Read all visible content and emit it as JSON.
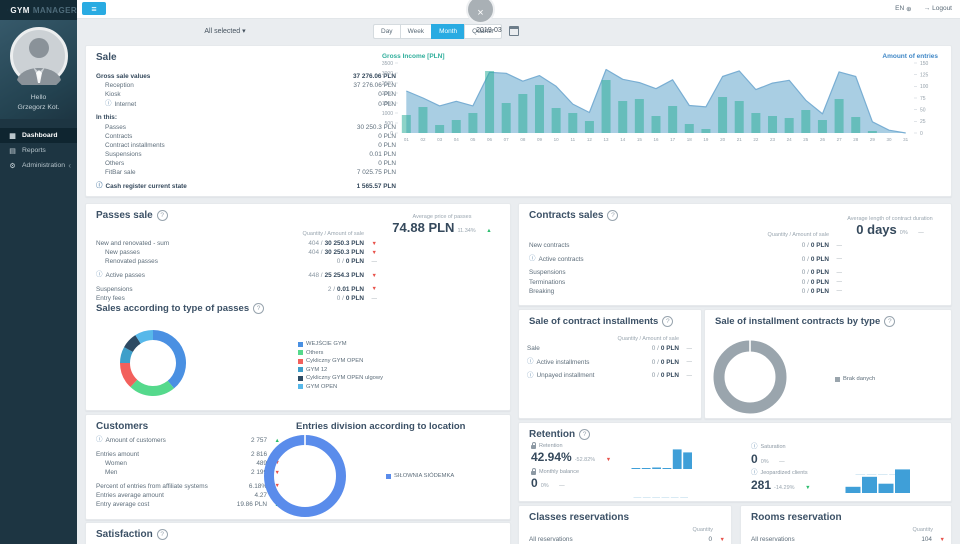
{
  "topbar": {
    "lang": "EN",
    "logout": "Logout"
  },
  "overlay": {
    "close": "×"
  },
  "filterbar": {
    "all_selected": "All selected",
    "periods": [
      "Day",
      "Week",
      "Month",
      "Quarter"
    ],
    "active_period": "Month",
    "date": "2019-03"
  },
  "sidebar": {
    "logo_part1": "GYM",
    "logo_part2": "MANAGER",
    "greeting_line1": "Hello",
    "greeting_line2": "Grzegorz Kot.",
    "menu": [
      {
        "label": "Dashboard",
        "icon": "dashboard-icon",
        "glyph": "▦",
        "active": true
      },
      {
        "label": "Reports",
        "icon": "reports-icon",
        "glyph": "▤",
        "active": false
      },
      {
        "label": "Administration",
        "icon": "administration-icon",
        "glyph": "⚙",
        "active": false,
        "chevron": true
      }
    ]
  },
  "sale": {
    "title": "Sale",
    "rows": [
      {
        "label": "Gross sale values",
        "value": "37 276.06 PLN",
        "bold": true,
        "value_bold": true
      },
      {
        "label": "Reception",
        "value": "37 276.06 PLN",
        "indent": true
      },
      {
        "label": "Kiosk",
        "value": "0 PLN",
        "indent": true
      },
      {
        "label": "Internet",
        "value": "0 PLN",
        "indent": true,
        "info": true
      },
      {
        "label": "In this:",
        "value": "",
        "bold": true,
        "gap": true
      },
      {
        "label": "Passes",
        "value": "30 250.3 PLN",
        "indent": true
      },
      {
        "label": "Contracts",
        "value": "0 PLN",
        "indent": true
      },
      {
        "label": "Contract installments",
        "value": "0 PLN",
        "indent": true
      },
      {
        "label": "Suspensions",
        "value": "0.01 PLN",
        "indent": true
      },
      {
        "label": "Others",
        "value": "0 PLN",
        "indent": true
      },
      {
        "label": "FitBar sale",
        "value": "7 025.75 PLN",
        "indent": true
      },
      {
        "label": "Cash register current state",
        "value": "1 565.57 PLN",
        "bold": true,
        "value_bold": true,
        "info": true,
        "gap": true
      }
    ]
  },
  "passes_sale": {
    "title": "Passes sale",
    "average_label": "Average price of passes",
    "average_value": "74.88 PLN",
    "average_delta": "11.34%",
    "average_trend": "up",
    "col_header": "Quantity / Amount of sale",
    "rows": [
      {
        "label": "New and renovated - sum",
        "qty": "404",
        "amount": "30 250.3 PLN",
        "trend": "down"
      },
      {
        "label": "New passes",
        "qty": "404",
        "amount": "30 250.3 PLN",
        "trend": "down",
        "indent": true
      },
      {
        "label": "Renovated passes",
        "qty": "0",
        "amount": "0 PLN",
        "trend": "flat",
        "indent": true
      },
      {
        "label": "Active passes",
        "qty": "448",
        "amount": "25 254.3 PLN",
        "trend": "down",
        "info": true,
        "gap": true
      },
      {
        "label": "Suspensions",
        "qty": "2",
        "amount": "0.01 PLN",
        "trend": "down",
        "gap": true
      },
      {
        "label": "Entry fees",
        "qty": "0",
        "amount": "0 PLN",
        "trend": "flat"
      }
    ]
  },
  "sales_by_type": {
    "title": "Sales according to type of passes"
  },
  "contracts_sales": {
    "title": "Contracts sales",
    "average_label": "Average length of contract duration",
    "average_value": "0 days",
    "average_delta": "0%",
    "average_trend": "flat",
    "col_header": "Quantity / Amount of sale",
    "rows": [
      {
        "label": "New contracts",
        "qty": "0",
        "amount": "0 PLN",
        "trend": "flat"
      },
      {
        "label": "Active contracts",
        "qty": "0",
        "amount": "0 PLN",
        "trend": "flat",
        "info": true,
        "gap": true
      },
      {
        "label": "Suspensions",
        "qty": "0",
        "amount": "0 PLN",
        "trend": "flat",
        "gap": true
      },
      {
        "label": "Terminations",
        "qty": "0",
        "amount": "0 PLN",
        "trend": "flat"
      },
      {
        "label": "Breaking",
        "qty": "0",
        "amount": "0 PLN",
        "trend": "flat"
      }
    ]
  },
  "installments": {
    "title": "Sale of contract installments",
    "col_header": "Quantity / Amount of sale",
    "rows": [
      {
        "label": "Sale",
        "qty": "0",
        "amount": "0 PLN",
        "trend": "flat"
      },
      {
        "label": "Active installments",
        "qty": "0",
        "amount": "0 PLN",
        "trend": "flat",
        "info": true,
        "gap": true
      },
      {
        "label": "Unpayed installment",
        "qty": "0",
        "amount": "0 PLN",
        "trend": "flat",
        "info": true,
        "gap": true
      }
    ]
  },
  "installments_by_type": {
    "title": "Sale of installment contracts by type"
  },
  "customers": {
    "title": "Customers",
    "rows": [
      {
        "label": "Amount of customers",
        "value": "2 757",
        "trend": "up",
        "info": true
      },
      {
        "label": "Entries amount",
        "value": "2 816",
        "trend": "down",
        "gap": true
      },
      {
        "label": "Women",
        "value": "489",
        "trend": "down",
        "indent": true
      },
      {
        "label": "Men",
        "value": "2 199",
        "trend": "down",
        "indent": true
      },
      {
        "label": "Percent of entries from affiliate systems",
        "value": "6.18%",
        "trend": "down",
        "gap": true
      },
      {
        "label": "Entries average amount",
        "value": "4.27",
        "trend": "up"
      },
      {
        "label": "Entry average cost",
        "value": "19.86 PLN",
        "trend": "up"
      }
    ]
  },
  "entries_location": {
    "title": "Entries division according to location"
  },
  "retention": {
    "title": "Retention",
    "metrics": [
      {
        "icon": "lock",
        "label": "Retention",
        "value": "42.94%",
        "delta": "-52.82%",
        "trend": "down"
      },
      {
        "icon": "lock",
        "label": "Monthly balance",
        "value": "0",
        "delta": "0%",
        "trend": "flat"
      },
      {
        "icon": "info",
        "label": "Saturation",
        "value": "0",
        "delta": "0%",
        "trend": "flat"
      },
      {
        "icon": "info",
        "label": "Jeopardized clients",
        "value": "281",
        "delta": "-14.29%",
        "trend": "down-good"
      }
    ]
  },
  "classes_reservations": {
    "title": "Classes reservations",
    "col_header": "Quantity",
    "rows": [
      {
        "label": "All reservations",
        "value": "0",
        "trend": "down"
      }
    ]
  },
  "rooms_reservation": {
    "title": "Rooms reservation",
    "col_header": "Quantity",
    "rows": [
      {
        "label": "All reservations",
        "value": "104",
        "trend": "down"
      }
    ]
  },
  "satisfaction": {
    "title": "Satisfaction"
  },
  "colors": {
    "accent_blue": "#29abe2",
    "bar_teal": "#2fae9b",
    "area_fill": "#a9cee3",
    "area_line": "#79aed3",
    "trend_up": "#2dbd6e",
    "trend_down": "#e8534c"
  },
  "chart_data": [
    {
      "id": "gross-income-vs-entries",
      "type": "bar+area",
      "title_left": "Gross Income [PLN]",
      "title_right": "Amount of entries",
      "categories": [
        "01",
        "02",
        "03",
        "04",
        "05",
        "06",
        "07",
        "08",
        "09",
        "10",
        "11",
        "12",
        "13",
        "14",
        "15",
        "16",
        "17",
        "18",
        "19",
        "20",
        "21",
        "22",
        "23",
        "24",
        "25",
        "26",
        "27",
        "28",
        "29",
        "30",
        "31"
      ],
      "left_axis": {
        "min": 0,
        "max": 3500,
        "step": 500
      },
      "right_axis": {
        "min": 0,
        "max": 150,
        "step": 25
      },
      "series": [
        {
          "name": "Gross income [PLN]",
          "type": "bar",
          "axis": "left",
          "values": [
            900,
            1300,
            400,
            650,
            1000,
            3100,
            1500,
            1950,
            2400,
            1250,
            1000,
            600,
            2650,
            1600,
            1700,
            850,
            1350,
            450,
            200,
            1800,
            1600,
            1000,
            850,
            750,
            1150,
            650,
            1700,
            800,
            100,
            0,
            0
          ]
        },
        {
          "name": "Amount of entries",
          "type": "area",
          "axis": "right",
          "values": [
            90,
            75,
            58,
            68,
            58,
            130,
            128,
            111,
            123,
            100,
            62,
            44,
            136,
            115,
            108,
            95,
            114,
            59,
            56,
            121,
            133,
            93,
            107,
            113,
            70,
            41,
            131,
            121,
            24,
            6,
            0
          ]
        }
      ]
    },
    {
      "id": "passes-by-type",
      "type": "donut",
      "title": "Sales according to type of passes",
      "segments": [
        {
          "label": "WEJŚCIE GYM",
          "value": 39,
          "color": "#4a90e2"
        },
        {
          "label": "Others",
          "value": 23,
          "color": "#55d98c"
        },
        {
          "label": "Cykliczny GYM OPEN",
          "value": 13,
          "color": "#f2605c"
        },
        {
          "label": "GYM 12",
          "value": 8,
          "color": "#3e9fca"
        },
        {
          "label": "Cykliczny GYM OPEN ulgowy",
          "value": 8,
          "color": "#2d4a63"
        },
        {
          "label": "GYM OPEN",
          "value": 9,
          "color": "#57b8ea"
        }
      ]
    },
    {
      "id": "entries-by-location",
      "type": "donut",
      "title": "Entries division according to location",
      "segments": [
        {
          "label": "SIŁOWNIA SIÓDEMKA",
          "value": 100,
          "color": "#5a8ceb"
        }
      ]
    },
    {
      "id": "installment-contracts-by-type",
      "type": "donut",
      "title": "Sale of installment contracts by type",
      "segments": [
        {
          "label": "Brak danych",
          "value": 100,
          "color": "#9aa5ad"
        }
      ]
    },
    {
      "id": "retention-sparklines",
      "type": "bar",
      "charts": [
        {
          "name": "Retention",
          "values": [
            2,
            2,
            3,
            2,
            40,
            34
          ],
          "max": 45,
          "color": "#3f9fd8"
        },
        {
          "name": "Monthly balance",
          "values": [
            1,
            1,
            1,
            1,
            1,
            1
          ],
          "max": 40,
          "color": "#cfe4f2"
        },
        {
          "name": "Saturation",
          "values": [
            1,
            1,
            1,
            1,
            1
          ],
          "max": 40,
          "color": "#cfe4f2"
        },
        {
          "name": "Jeopardized clients",
          "values": [
            10,
            26,
            15,
            38
          ],
          "max": 45,
          "color": "#3f9fd8"
        }
      ]
    }
  ]
}
